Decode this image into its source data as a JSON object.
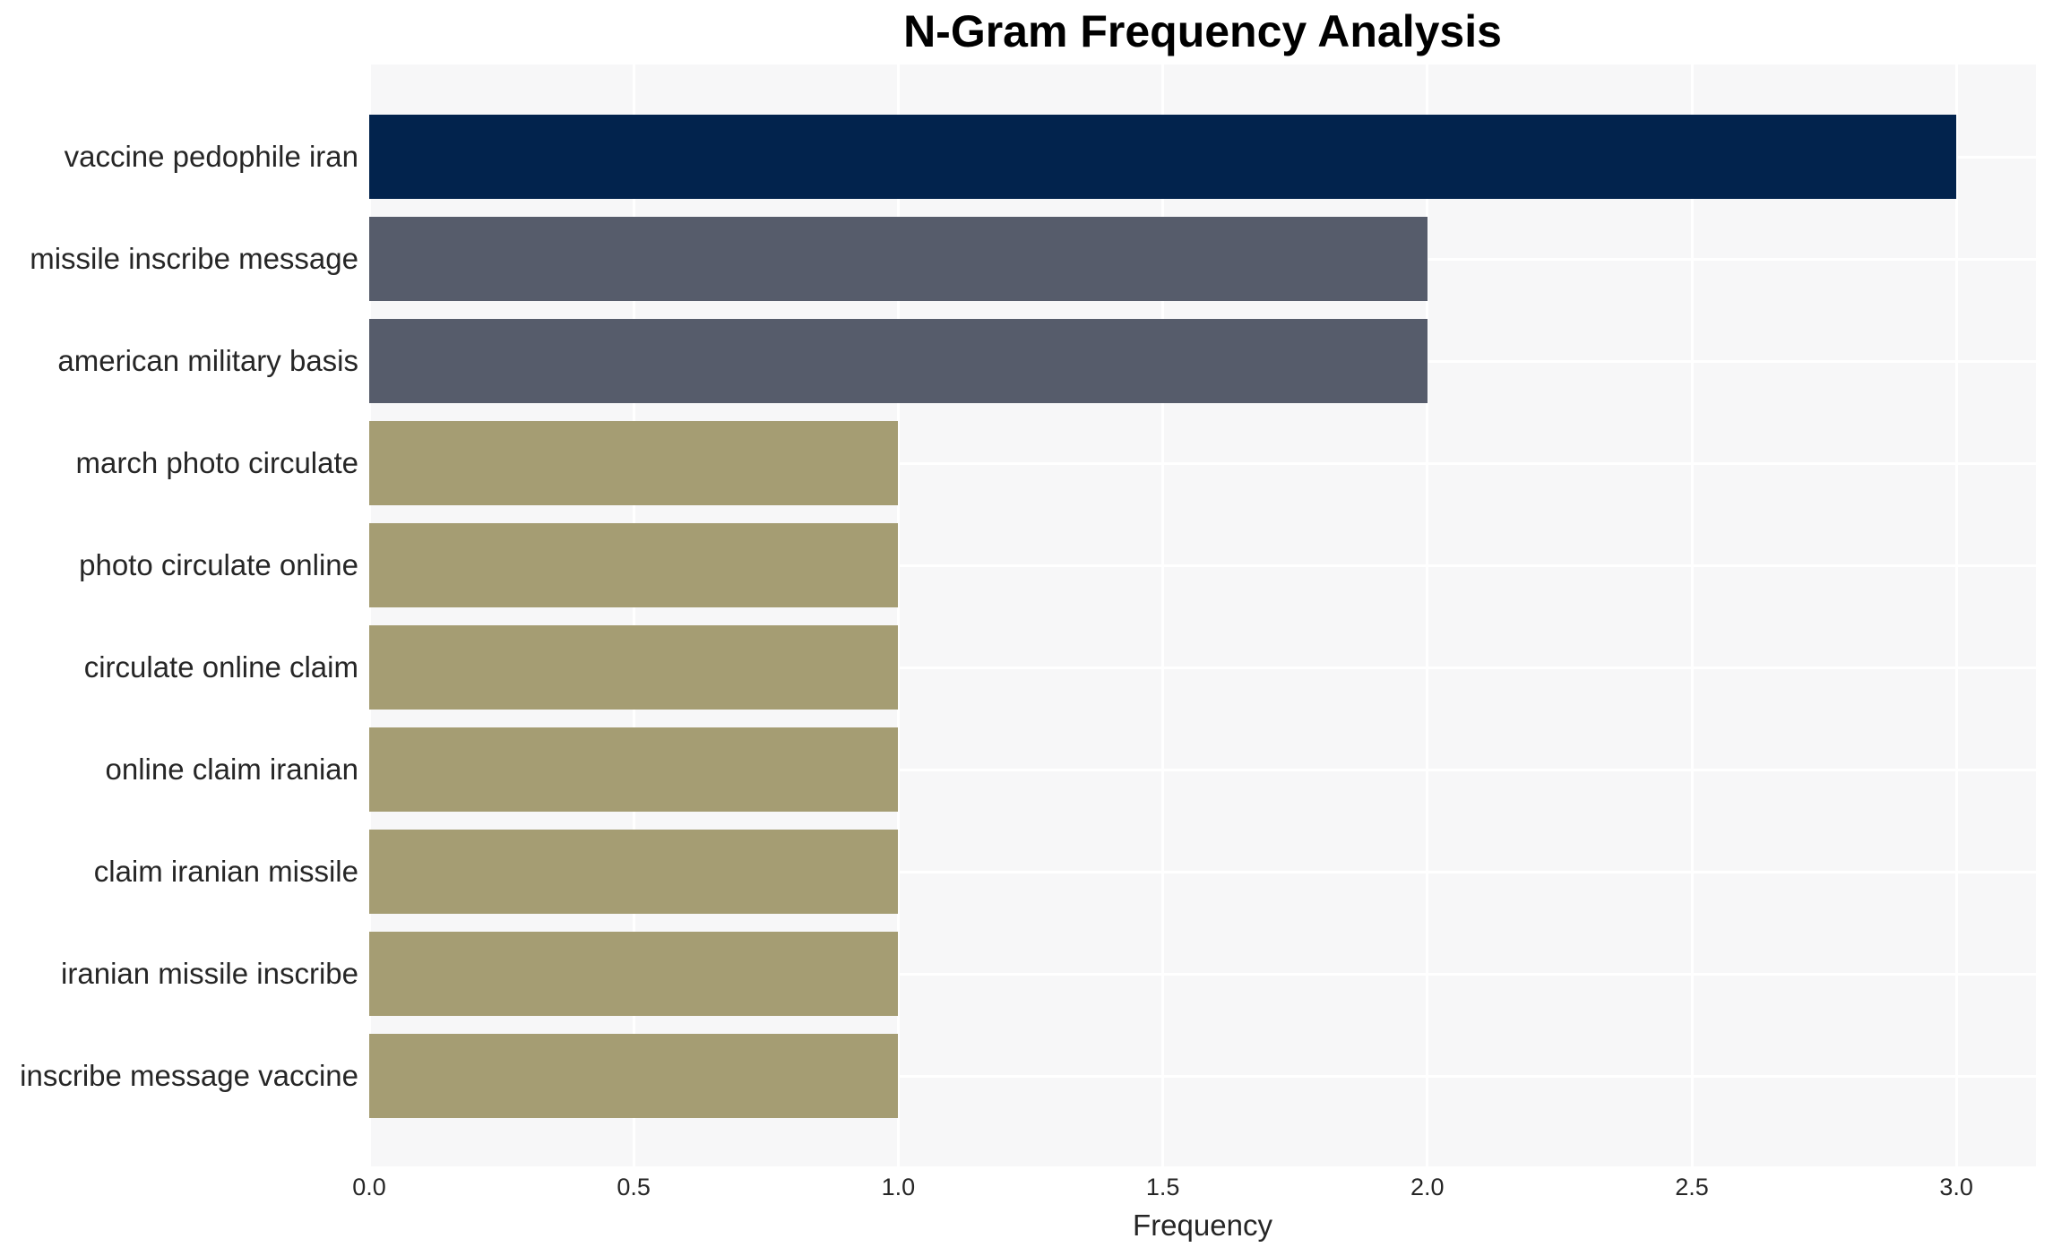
{
  "chart_data": {
    "type": "bar",
    "orientation": "horizontal",
    "title": "N-Gram Frequency Analysis",
    "xlabel": "Frequency",
    "ylabel": "",
    "categories": [
      "vaccine pedophile iran",
      "missile inscribe message",
      "american military basis",
      "march photo circulate",
      "photo circulate online",
      "circulate online claim",
      "online claim iranian",
      "claim iranian missile",
      "iranian missile inscribe",
      "inscribe message vaccine"
    ],
    "values": [
      3,
      2,
      2,
      1,
      1,
      1,
      1,
      1,
      1,
      1
    ],
    "bar_colors": [
      "#02234d",
      "#565c6b",
      "#565c6b",
      "#a59d73",
      "#a59d73",
      "#a59d73",
      "#a59d73",
      "#a59d73",
      "#a59d73",
      "#a59d73"
    ],
    "xticks": [
      0.0,
      0.5,
      1.0,
      1.5,
      2.0,
      2.5,
      3.0
    ],
    "xtick_labels": [
      "0.0",
      "0.5",
      "1.0",
      "1.5",
      "2.0",
      "2.5",
      "3.0"
    ],
    "xlim": [
      0,
      3.15
    ],
    "grid": "on",
    "grid_color": "#ffffff",
    "plot_background": "#f7f7f8",
    "page_background": "#ffffff",
    "text_color": "#262626",
    "title_color": "#000000",
    "legend": "none"
  }
}
